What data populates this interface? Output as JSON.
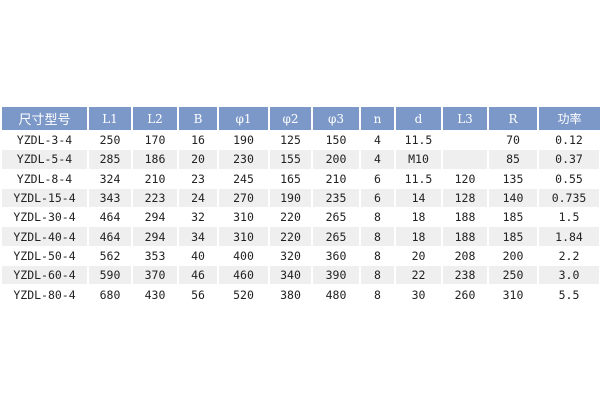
{
  "table": {
    "headers": [
      "尺寸型号",
      "L1",
      "L2",
      "B",
      "φ1",
      "φ2",
      "φ3",
      "n",
      "d",
      "L3",
      "R",
      "功率"
    ],
    "rows": [
      [
        "YZDL-3-4",
        "250",
        "170",
        "16",
        "190",
        "125",
        "150",
        "4",
        "11.5",
        "",
        "70",
        "0.12"
      ],
      [
        "YZDL-5-4",
        "285",
        "186",
        "20",
        "230",
        "155",
        "200",
        "4",
        "M10",
        "",
        "85",
        "0.37"
      ],
      [
        "YZDL-8-4",
        "324",
        "210",
        "23",
        "245",
        "165",
        "210",
        "6",
        "11.5",
        "120",
        "135",
        "0.55"
      ],
      [
        "YZDL-15-4",
        "343",
        "223",
        "24",
        "270",
        "190",
        "235",
        "6",
        "14",
        "128",
        "140",
        "0.735"
      ],
      [
        "YZDL-30-4",
        "464",
        "294",
        "32",
        "310",
        "220",
        "265",
        "8",
        "18",
        "188",
        "185",
        "1.5"
      ],
      [
        "YZDL-40-4",
        "464",
        "294",
        "34",
        "310",
        "220",
        "265",
        "8",
        "18",
        "188",
        "185",
        "1.84"
      ],
      [
        "YZDL-50-4",
        "562",
        "353",
        "40",
        "400",
        "320",
        "360",
        "8",
        "20",
        "208",
        "200",
        "2.2"
      ],
      [
        "YZDL-60-4",
        "590",
        "370",
        "46",
        "460",
        "340",
        "390",
        "8",
        "22",
        "238",
        "250",
        "3.0"
      ],
      [
        "YZDL-80-4",
        "680",
        "430",
        "56",
        "520",
        "380",
        "480",
        "8",
        "30",
        "260",
        "310",
        "5.5"
      ]
    ],
    "colors": {
      "header_bg": "#7b98c9",
      "alt_row_bg": "#efefef"
    }
  }
}
